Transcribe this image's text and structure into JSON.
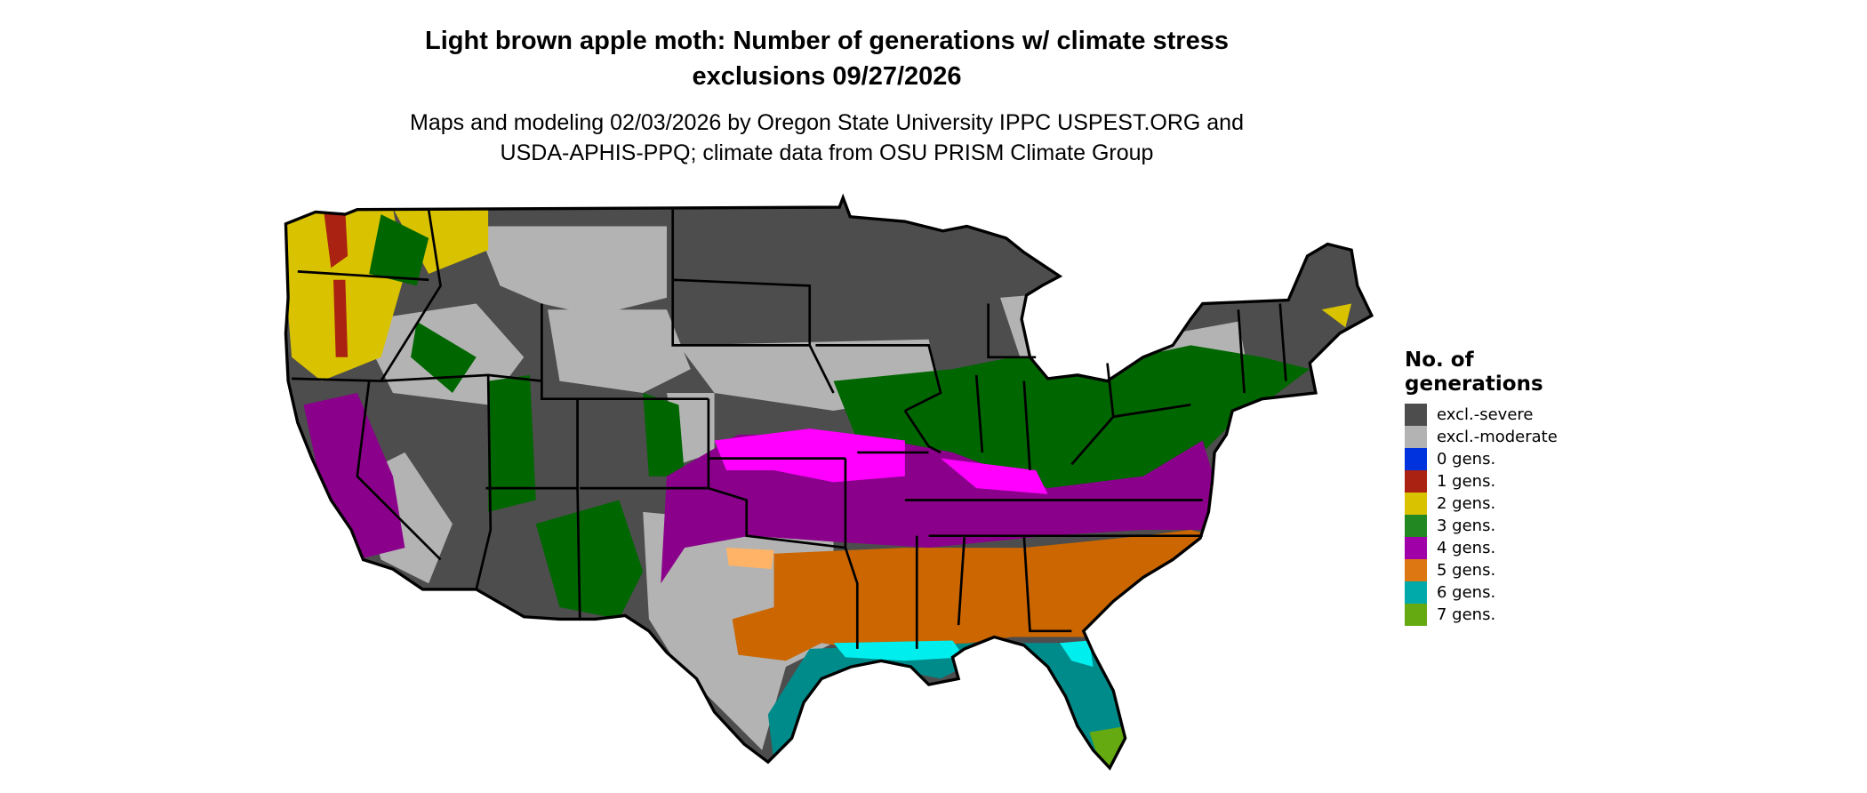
{
  "title": {
    "line1": "Light brown apple moth: Number of generations w/ climate stress",
    "line2": "exclusions 09/27/2026"
  },
  "subtitle": {
    "line1": "Maps and modeling 02/03/2026 by Oregon State University IPPC USPEST.ORG and",
    "line2": "USDA-APHIS-PPQ; climate data from OSU PRISM Climate Group"
  },
  "legend": {
    "title_line1": "No. of",
    "title_line2": "generations",
    "items": [
      {
        "label": "excl.-severe",
        "color": "#4d4d4d"
      },
      {
        "label": "excl.-moderate",
        "color": "#b3b3b3"
      },
      {
        "label": "0 gens.",
        "color": "#0033dd"
      },
      {
        "label": "1 gens.",
        "color": "#aa2211"
      },
      {
        "label": "2 gens.",
        "color": "#d9c200"
      },
      {
        "label": "3 gens.",
        "color": "#228822"
      },
      {
        "label": "4 gens.",
        "color": "#a000a8"
      },
      {
        "label": "5 gens.",
        "color": "#dd7711"
      },
      {
        "label": "6 gens.",
        "color": "#00aaaa"
      },
      {
        "label": "7 gens.",
        "color": "#66aa11"
      }
    ]
  }
}
